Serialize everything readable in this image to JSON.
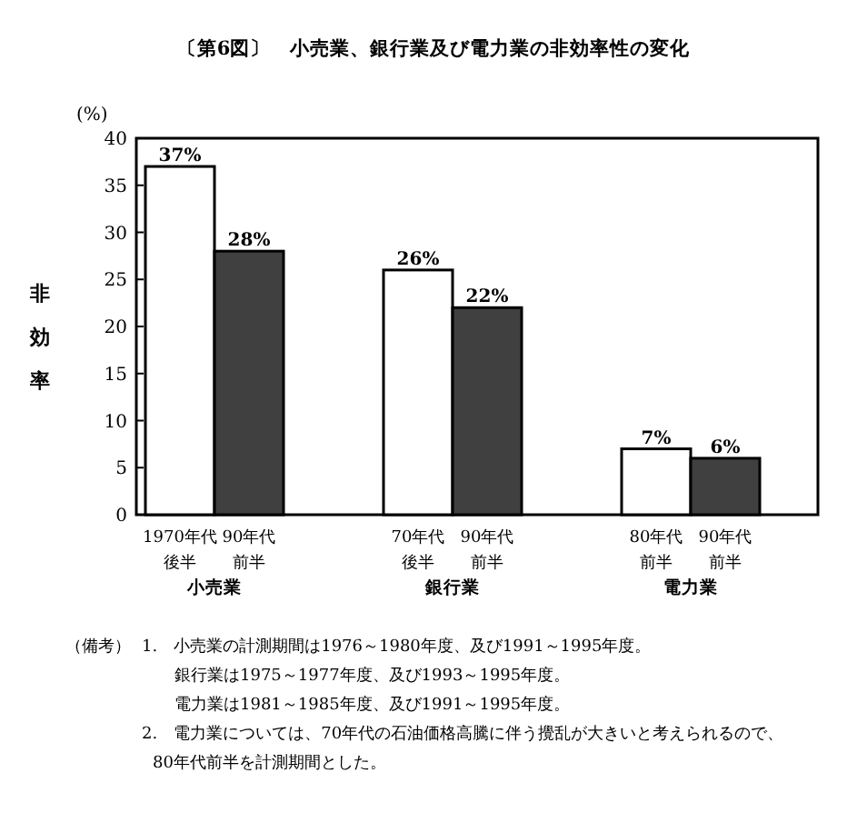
{
  "chart_data": {
    "type": "bar",
    "title": "〔第6図〕　小売業、銀行業及び電力業の非効率性の変化",
    "ylabel": "非効率",
    "categories": [
      "1970年代後半",
      "90年代前半",
      "70年代後半",
      "90年代前半",
      "80年代前半",
      "90年代前半"
    ],
    "values": [
      37,
      28,
      26,
      22,
      7,
      6
    ],
    "colors": [
      "#ffffff",
      "#404040",
      "#ffffff",
      "#404040",
      "#ffffff",
      "#404040"
    ],
    "value_labels": [
      "37%",
      "28%",
      "26%",
      "22%",
      "7%",
      "6%"
    ],
    "ylim": [
      0,
      40
    ],
    "yticks": [
      0,
      5,
      10,
      15,
      20,
      25,
      30,
      35,
      40
    ],
    "grid": false,
    "annotations": [
      "(%)",
      "小売業",
      "銀行業",
      "電力業",
      "（備考）",
      "1.　小売業の計測期間は1976～1980年度、及び1991～1995年度。",
      "銀行業は1975～1977年度、及び1993～1995年度。",
      "電力業は1981～1985年度、及び1991～1995年度。",
      "2.　電力業については、70年代の石油価格高騰に伴う攪乱が大きいと考えられるので、80年代前半を計測期間とした。"
    ]
  }
}
